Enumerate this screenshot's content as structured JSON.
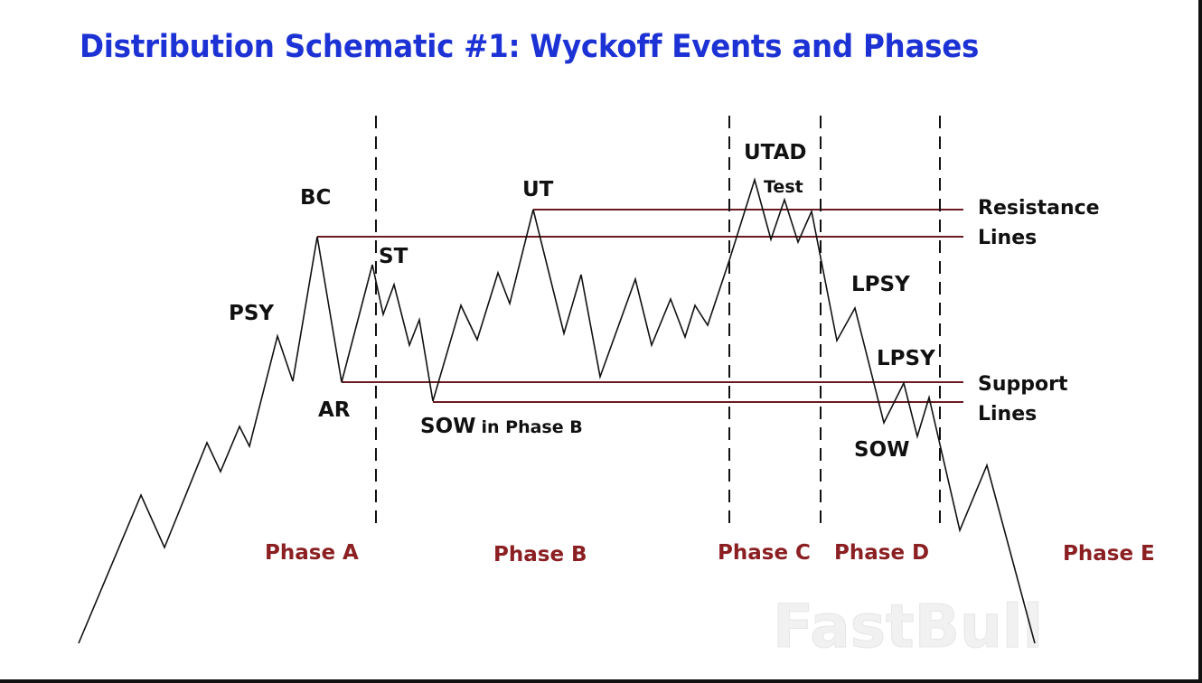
{
  "title": "Distribution Schematic #1: Wyckoff Events and Phases",
  "events": {
    "psy": "PSY",
    "bc": "BC",
    "ar": "AR",
    "st": "ST",
    "sow_b": "SOW",
    "sow_b_suffix": "in Phase B",
    "ut": "UT",
    "utad": "UTAD",
    "test": "Test",
    "lpsy1": "LPSY",
    "lpsy2": "LPSY",
    "sow": "SOW"
  },
  "phases": [
    "Phase A",
    "Phase B",
    "Phase C",
    "Phase D",
    "Phase E"
  ],
  "legend": {
    "resistance": [
      "Resistance",
      "Lines"
    ],
    "support": [
      "Support",
      "Lines"
    ]
  },
  "watermark": "FastBull",
  "colors": {
    "title": "#1c32d4",
    "phase": "#8b1f22",
    "levels": "#6b1a22",
    "price": "#111111"
  }
}
